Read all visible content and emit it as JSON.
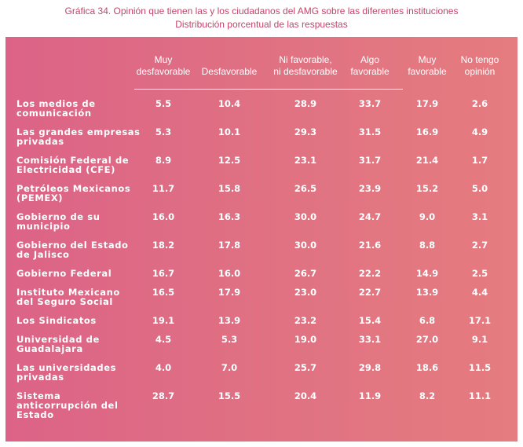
{
  "title": "Gráfica 34. Opinión que tienen las y los ciudadanos del AMG sobre las diferentes instituciones",
  "subtitle": "Distribución porcentual de las respuestas",
  "colors": {
    "title": "#c5446a",
    "panel": "#e0708a",
    "text": "#ffffff"
  },
  "chart_data": {
    "type": "table",
    "title": "Gráfica 34. Opinión que tienen las y los ciudadanos del AMG sobre las diferentes instituciones",
    "subtitle": "Distribución porcentual de las respuestas",
    "columns": [
      [
        "Muy",
        "desfavorable"
      ],
      [
        "Desfavorable"
      ],
      [
        "Ni favorable,",
        "ni desfavorable"
      ],
      [
        "Algo",
        "favorable"
      ],
      [
        "Muy",
        "favorable"
      ],
      [
        "No tengo",
        "opinión"
      ]
    ],
    "rows": [
      {
        "label": [
          "Los medios de",
          "comunicación"
        ],
        "values": [
          "5.5",
          "10.4",
          "28.9",
          "33.7",
          "17.9",
          "2.6"
        ]
      },
      {
        "label": [
          "Las grandes empresas",
          "privadas"
        ],
        "values": [
          "5.3",
          "10.1",
          "29.3",
          "31.5",
          "16.9",
          "4.9"
        ]
      },
      {
        "label": [
          "Comisión Federal de",
          "Electricidad (CFE)"
        ],
        "values": [
          "8.9",
          "12.5",
          "23.1",
          "31.7",
          "21.4",
          "1.7"
        ]
      },
      {
        "label": [
          "Petróleos Mexicanos",
          "(PEMEX)"
        ],
        "values": [
          "11.7",
          "15.8",
          "26.5",
          "23.9",
          "15.2",
          "5.0"
        ]
      },
      {
        "label": [
          "Gobierno de su",
          "municipio"
        ],
        "values": [
          "16.0",
          "16.3",
          "30.0",
          "24.7",
          "9.0",
          "3.1"
        ]
      },
      {
        "label": [
          "Gobierno del Estado",
          "de Jalisco"
        ],
        "values": [
          "18.2",
          "17.8",
          "30.0",
          "21.6",
          "8.8",
          "2.7"
        ]
      },
      {
        "label": [
          "Gobierno Federal"
        ],
        "values": [
          "16.7",
          "16.0",
          "26.7",
          "22.2",
          "14.9",
          "2.5"
        ]
      },
      {
        "label": [
          "Instituto Mexicano",
          "del Seguro Social"
        ],
        "values": [
          "16.5",
          "17.9",
          "23.0",
          "22.7",
          "13.9",
          "4.4"
        ]
      },
      {
        "label": [
          "Los Sindicatos"
        ],
        "values": [
          "19.1",
          "13.9",
          "23.2",
          "15.4",
          "6.8",
          "17.1"
        ]
      },
      {
        "label": [
          "Universidad de",
          "Guadalajara"
        ],
        "values": [
          "4.5",
          "5.3",
          "19.0",
          "33.1",
          "27.0",
          "9.1"
        ]
      },
      {
        "label": [
          "Las universidades",
          "privadas"
        ],
        "values": [
          "4.0",
          "7.0",
          "25.7",
          "29.8",
          "18.6",
          "11.5"
        ]
      },
      {
        "label": [
          "Sistema",
          "anticorrupción del",
          "Estado"
        ],
        "values": [
          "28.7",
          "15.5",
          "20.4",
          "11.9",
          "8.2",
          "11.1"
        ]
      }
    ]
  }
}
